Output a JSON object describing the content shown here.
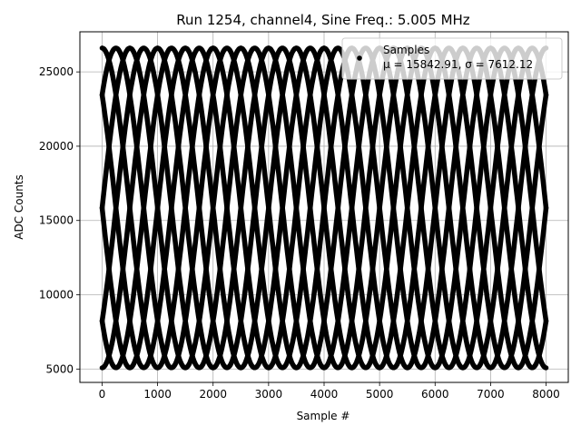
{
  "chart_data": {
    "type": "scatter",
    "title": "Run 1254, channel4, Sine Freq.: 5.005 MHz",
    "xlabel": "Sample #",
    "ylabel": "ADC Counts",
    "xlim": [
      -400,
      8400
    ],
    "ylim": [
      4100,
      27700
    ],
    "xticks": [
      0,
      1000,
      2000,
      3000,
      4000,
      5000,
      6000,
      7000,
      8000
    ],
    "xtick_labels": [
      "0",
      "1000",
      "2000",
      "3000",
      "4000",
      "5000",
      "6000",
      "7000",
      "8000"
    ],
    "yticks": [
      5000,
      10000,
      15000,
      20000,
      25000
    ],
    "ytick_labels": [
      "5000",
      "10000",
      "15000",
      "20000",
      "25000"
    ],
    "grid": true,
    "legend_position": "top-right",
    "series": [
      {
        "name": "Samples",
        "stats_label": "μ = 15842.91, σ = 7612.12",
        "color": "#000000",
        "marker": "dot",
        "model": {
          "offset": 15842.91,
          "amplitude": 10760,
          "period_samples": 2000,
          "phases_deg": [
            -90,
            -45,
            0,
            45,
            90,
            135,
            180,
            225
          ],
          "x_range": [
            0,
            8000
          ]
        }
      }
    ]
  }
}
